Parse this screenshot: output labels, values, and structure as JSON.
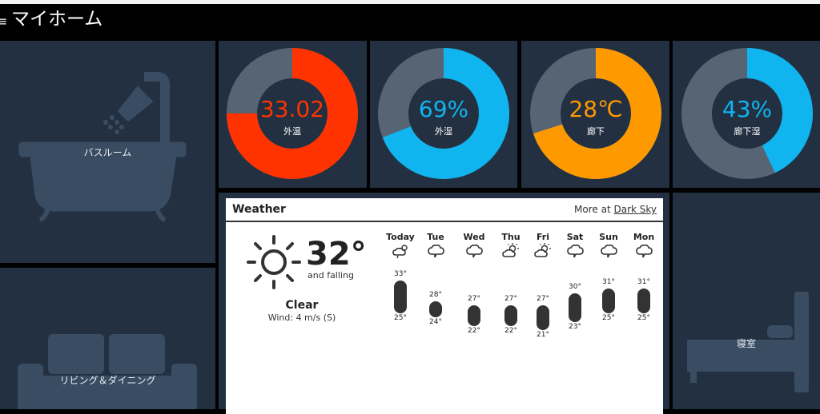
{
  "header": {
    "title": "マイホーム",
    "menu_icon": "hamburger-icon"
  },
  "tiles": {
    "bathroom": {
      "label": "バスルーム",
      "icon": "bathtub-shower-icon"
    },
    "living": {
      "label": "リビング＆ダイニング",
      "icon": "sofa-icon"
    },
    "bedroom": {
      "label": "寝室",
      "icon": "bed-icon"
    }
  },
  "gauges": [
    {
      "value_text": "33.02",
      "label": "外温",
      "fraction": 0.75,
      "color": "#ff3300"
    },
    {
      "value_text": "69%",
      "label": "外湿",
      "fraction": 0.69,
      "color": "#10b4ef"
    },
    {
      "value_text": "28℃",
      "label": "廊下",
      "fraction": 0.7,
      "color": "#ff9900"
    },
    {
      "value_text": "43%",
      "label": "廊下湿",
      "fraction": 0.43,
      "color": "#10b4ef"
    }
  ],
  "weather": {
    "title": "Weather",
    "more_prefix": "More at ",
    "more_link": "Dark Sky",
    "current": {
      "temp": "32°",
      "trend": "and falling",
      "summary": "Clear",
      "wind": "Wind: 4 m/s (S)",
      "icon": "sun-icon"
    },
    "forecast": [
      {
        "day": "Today",
        "hi": "33°",
        "lo": "25°",
        "hi_val": 33,
        "lo_val": 25,
        "icon": "partly-cloudy-icon"
      },
      {
        "day": "Tue",
        "hi": "28°",
        "lo": "24°",
        "hi_val": 28,
        "lo_val": 24,
        "icon": "cloud-icon"
      },
      {
        "day": "Wed",
        "hi": "27°",
        "lo": "22°",
        "hi_val": 27,
        "lo_val": 22,
        "icon": "cloud-icon"
      },
      {
        "day": "Thu",
        "hi": "27°",
        "lo": "22°",
        "hi_val": 27,
        "lo_val": 22,
        "icon": "sun-cloud-icon"
      },
      {
        "day": "Fri",
        "hi": "27°",
        "lo": "21°",
        "hi_val": 27,
        "lo_val": 21,
        "icon": "sun-cloud-icon"
      },
      {
        "day": "Sat",
        "hi": "30°",
        "lo": "23°",
        "hi_val": 30,
        "lo_val": 23,
        "icon": "cloud-icon"
      },
      {
        "day": "Sun",
        "hi": "31°",
        "lo": "25°",
        "hi_val": 31,
        "lo_val": 25,
        "icon": "cloud-icon"
      },
      {
        "day": "Mon",
        "hi": "31°",
        "lo": "25°",
        "hi_val": 31,
        "lo_val": 25,
        "icon": "cloud-icon"
      }
    ]
  },
  "colors": {
    "tile": "#223042",
    "gauge_track": "#566474"
  }
}
